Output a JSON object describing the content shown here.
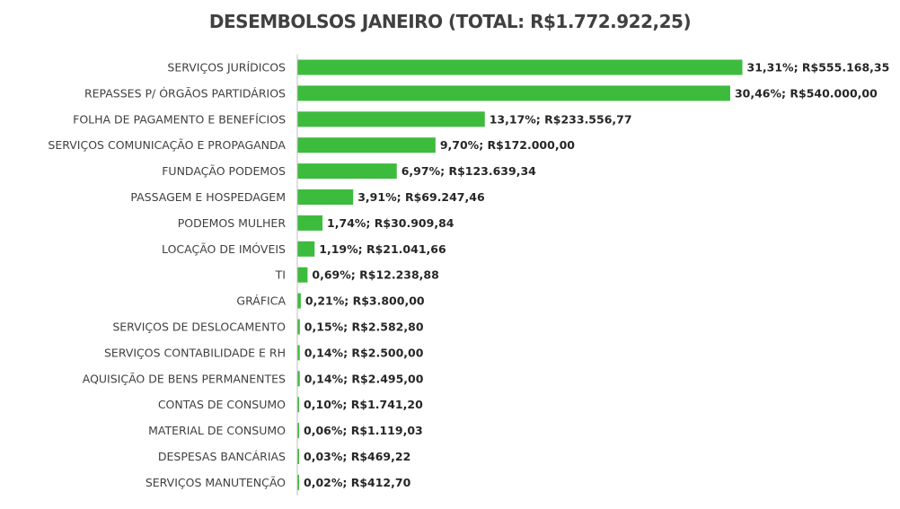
{
  "chart_data": {
    "type": "bar",
    "orientation": "horizontal",
    "title": "DESEMBOLSOS JANEIRO (TOTAL: R$1.772.922,25)",
    "bar_color": "#3dbb3d",
    "axis_color": "#bfbfbf",
    "categories": [
      "SERVIÇOS JURÍDICOS",
      "REPASSES P/ ÓRGÃOS PARTIDÁRIOS",
      "FOLHA DE PAGAMENTO E BENEFÍCIOS",
      "SERVIÇOS COMUNICAÇÃO E PROPAGANDA",
      "FUNDAÇÃO PODEMOS",
      "PASSAGEM E HOSPEDAGEM",
      "PODEMOS MULHER",
      "LOCAÇÃO DE IMÓVEIS",
      "TI",
      "GRÁFICA",
      "SERVIÇOS DE DESLOCAMENTO",
      "SERVIÇOS CONTABILIDADE E RH",
      "AQUISIÇÃO DE BENS PERMANENTES",
      "CONTAS DE CONSUMO",
      "MATERIAL DE CONSUMO",
      "DESPESAS BANCÁRIAS",
      "SERVIÇOS MANUTENÇÃO"
    ],
    "values": [
      555168.35,
      540000.0,
      233556.77,
      172000.0,
      123639.34,
      69247.46,
      30909.84,
      21041.66,
      12238.88,
      3800.0,
      2582.8,
      2500.0,
      2495.0,
      1741.2,
      1119.03,
      469.22,
      412.7
    ],
    "data_labels": [
      "31,31%; R$555.168,35",
      "30,46%; R$540.000,00",
      "13,17%; R$233.556,77",
      "9,70%; R$172.000,00",
      "6,97%; R$123.639,34",
      "3,91%; R$69.247,46",
      "1,74%; R$30.909,84",
      "1,19%; R$21.041,66",
      "0,69%; R$12.238,88",
      "0,21%; R$3.800,00",
      "0,15%; R$2.582,80",
      "0,14%; R$2.500,00",
      "0,14%; R$2.495,00",
      "0,10%; R$1.741,20",
      "0,06%; R$1.119,03",
      "0,03%; R$469,22",
      "0,02%; R$412,70"
    ],
    "xlim": [
      0,
      555168.35
    ],
    "grid": false,
    "legend": "none"
  }
}
